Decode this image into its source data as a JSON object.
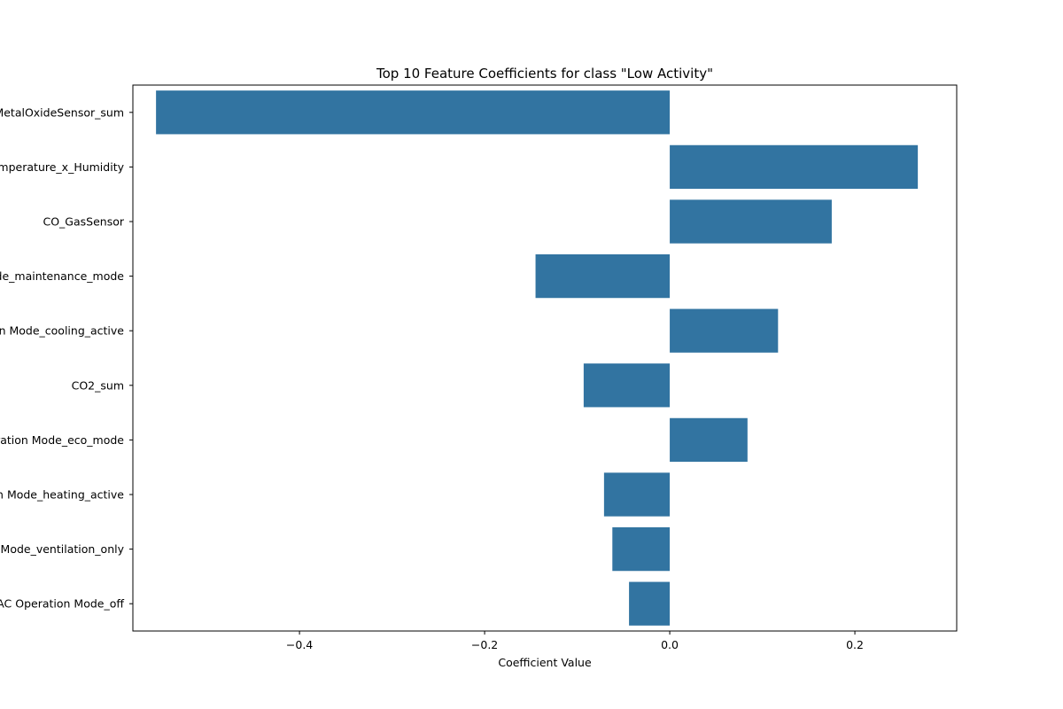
{
  "chart_data": {
    "type": "bar",
    "orientation": "horizontal",
    "title": "Top 10 Feature Coefficients for class \"Low Activity\"",
    "xlabel": "Coefficient Value",
    "ylabel": "",
    "xlim": [
      -0.58,
      0.31
    ],
    "xticks": [
      -0.4,
      -0.2,
      0.0,
      0.2
    ],
    "xtick_labels": [
      "−0.4",
      "−0.2",
      "0.0",
      "0.2"
    ],
    "grid": false,
    "bar_color": "#3274a1",
    "categories": [
      "MetalOxideSensor_sum",
      "Temperature_x_Humidity",
      "CO_GasSensor",
      "HVAC Operation Mode_maintenance_mode",
      "HVAC Operation Mode_cooling_active",
      "CO2_sum",
      "HVAC Operation Mode_eco_mode",
      "HVAC Operation Mode_heating_active",
      "HVAC Operation Mode_ventilation_only",
      "HVAC Operation Mode_off"
    ],
    "values": [
      -0.555,
      0.268,
      0.175,
      -0.145,
      0.117,
      -0.093,
      0.084,
      -0.071,
      -0.062,
      -0.044
    ]
  }
}
